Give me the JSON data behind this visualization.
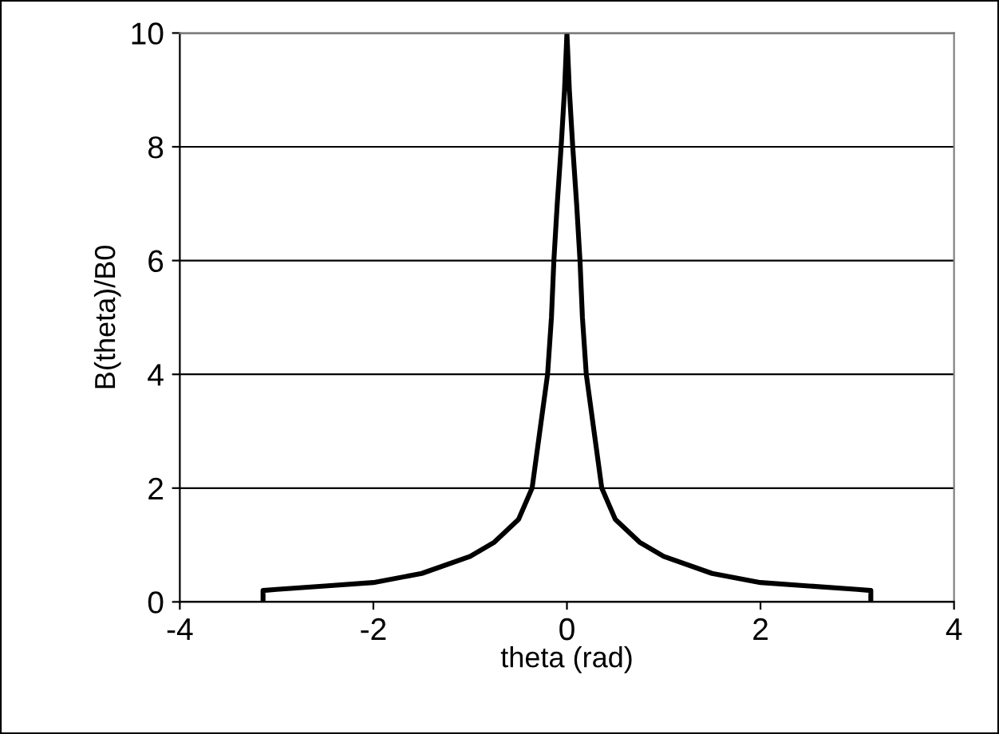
{
  "chart_data": {
    "type": "line",
    "xlabel": "theta (rad)",
    "ylabel": "B(theta)/B0",
    "series": [
      {
        "color": "#000000",
        "x": [
          -3.14,
          -3.14,
          -3.0,
          -2.5,
          -2.0,
          -1.5,
          -1.0,
          -0.75,
          -0.5,
          -0.36,
          -0.28,
          -0.2,
          -0.16,
          -0.135,
          -0.1,
          -0.06,
          -0.025,
          0,
          0.025,
          0.06,
          0.1,
          0.135,
          0.16,
          0.2,
          0.28,
          0.36,
          0.5,
          0.75,
          1.0,
          1.5,
          2.0,
          2.5,
          3.0,
          3.14,
          3.14
        ],
        "values": [
          0,
          0.2,
          0.22,
          0.28,
          0.34,
          0.5,
          0.8,
          1.05,
          1.45,
          2.0,
          3.0,
          4.0,
          5.0,
          6.0,
          7.0,
          8.0,
          9.0,
          10,
          9.0,
          8.0,
          7.0,
          6.0,
          5.0,
          4.0,
          3.0,
          2.0,
          1.45,
          1.05,
          0.8,
          0.5,
          0.34,
          0.28,
          0.22,
          0.2,
          0
        ]
      }
    ],
    "xlim": [
      -4,
      4
    ],
    "xticks": [
      -4,
      -2,
      0,
      2,
      4
    ],
    "ylim": [
      0,
      10
    ],
    "yticks": [
      0,
      2,
      4,
      6,
      8,
      10
    ],
    "grid": "y",
    "marker": "none",
    "line_style": "solid"
  }
}
